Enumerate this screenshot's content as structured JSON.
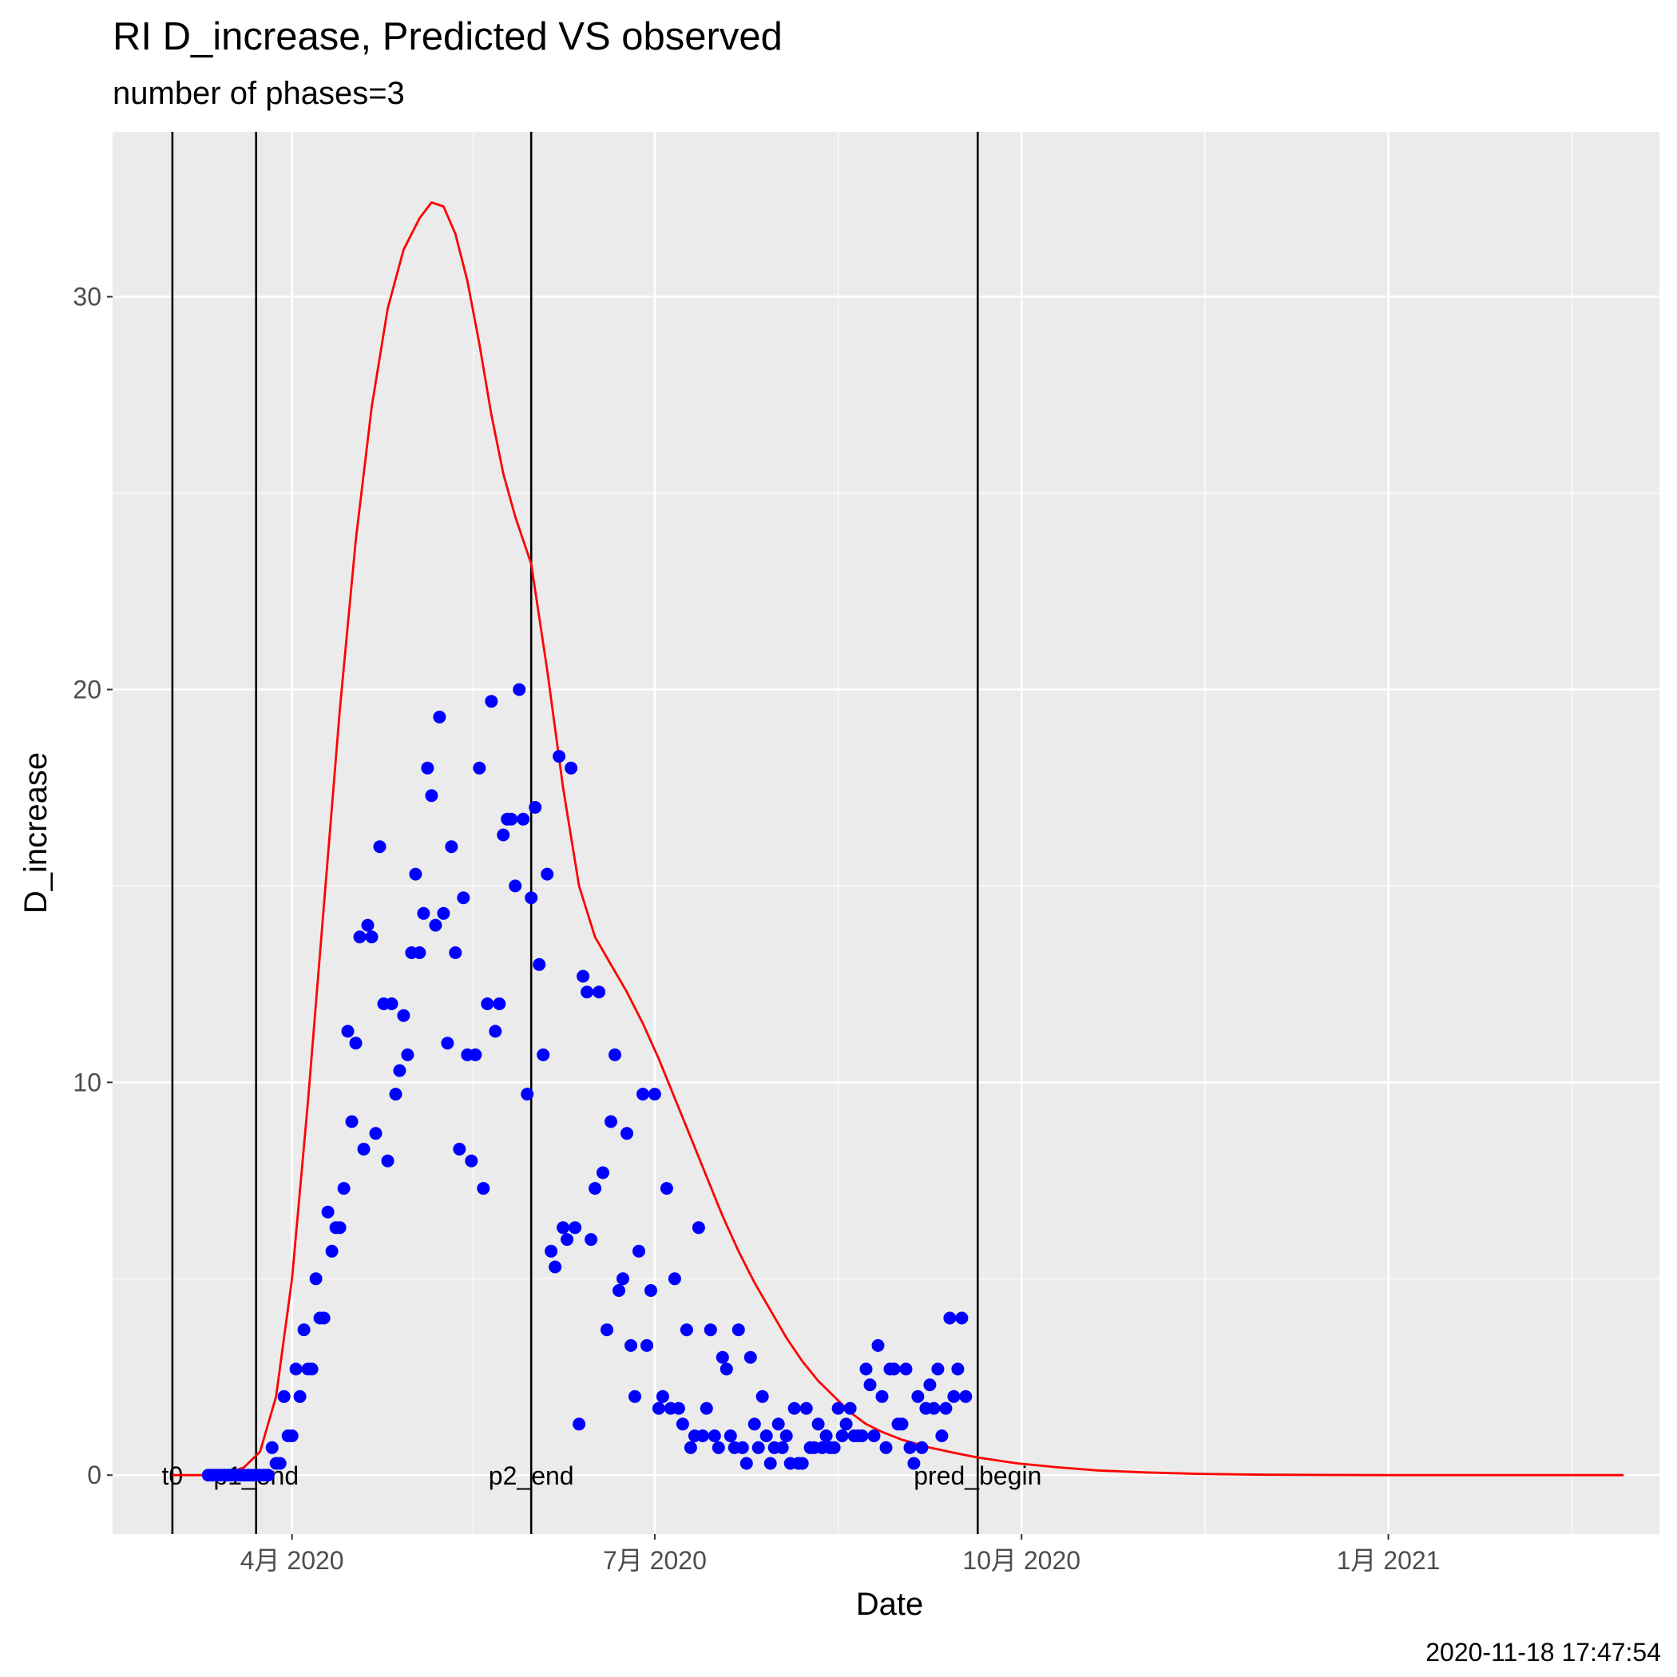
{
  "chart_data": {
    "type": "scatter",
    "title": "RI D_increase, Predicted VS observed",
    "subtitle": "number of phases=3",
    "xlabel": "Date",
    "ylabel": "D_increase",
    "caption": "2020-11-18 17:47:54",
    "x_ticks": [
      {
        "date": "2020-04-01",
        "label": "4月 2020"
      },
      {
        "date": "2020-07-01",
        "label": "7月 2020"
      },
      {
        "date": "2020-10-01",
        "label": "10月 2020"
      },
      {
        "date": "2021-01-01",
        "label": "1月 2021"
      }
    ],
    "xlim": [
      "2020-02-16",
      "2021-03-10"
    ],
    "y_ticks": [
      0,
      10,
      20,
      30
    ],
    "ylim": [
      -1.5,
      34.2
    ],
    "grid": true,
    "vertical_lines": [
      {
        "date": "2020-03-02",
        "label": "t0"
      },
      {
        "date": "2020-03-23",
        "label": "p1_end"
      },
      {
        "date": "2020-05-31",
        "label": "p2_end"
      },
      {
        "date": "2020-09-20",
        "label": "pred_begin"
      }
    ],
    "series": [
      {
        "kind": "points",
        "color": "#0000ff",
        "points": [
          [
            "2020-03-11",
            0
          ],
          [
            "2020-03-12",
            0
          ],
          [
            "2020-03-13",
            0
          ],
          [
            "2020-03-14",
            0
          ],
          [
            "2020-03-15",
            0
          ],
          [
            "2020-03-16",
            0
          ],
          [
            "2020-03-17",
            0
          ],
          [
            "2020-03-18",
            0
          ],
          [
            "2020-03-19",
            0
          ],
          [
            "2020-03-20",
            0
          ],
          [
            "2020-03-21",
            0
          ],
          [
            "2020-03-22",
            0
          ],
          [
            "2020-03-23",
            0
          ],
          [
            "2020-03-24",
            0
          ],
          [
            "2020-03-25",
            0
          ],
          [
            "2020-03-26",
            0
          ],
          [
            "2020-03-27",
            0.7
          ],
          [
            "2020-03-28",
            0.3
          ],
          [
            "2020-03-29",
            0.3
          ],
          [
            "2020-03-30",
            2.0
          ],
          [
            "2020-03-31",
            1.0
          ],
          [
            "2020-04-01",
            1.0
          ],
          [
            "2020-04-02",
            2.7
          ],
          [
            "2020-04-03",
            2.0
          ],
          [
            "2020-04-04",
            3.7
          ],
          [
            "2020-04-05",
            2.7
          ],
          [
            "2020-04-06",
            2.7
          ],
          [
            "2020-04-07",
            5.0
          ],
          [
            "2020-04-08",
            4.0
          ],
          [
            "2020-04-09",
            4.0
          ],
          [
            "2020-04-10",
            6.7
          ],
          [
            "2020-04-11",
            5.7
          ],
          [
            "2020-04-12",
            6.3
          ],
          [
            "2020-04-13",
            6.3
          ],
          [
            "2020-04-14",
            7.3
          ],
          [
            "2020-04-15",
            11.3
          ],
          [
            "2020-04-16",
            9.0
          ],
          [
            "2020-04-17",
            11.0
          ],
          [
            "2020-04-18",
            13.7
          ],
          [
            "2020-04-19",
            8.3
          ],
          [
            "2020-04-20",
            14.0
          ],
          [
            "2020-04-21",
            13.7
          ],
          [
            "2020-04-22",
            8.7
          ],
          [
            "2020-04-23",
            16.0
          ],
          [
            "2020-04-24",
            12.0
          ],
          [
            "2020-04-25",
            8.0
          ],
          [
            "2020-04-26",
            12.0
          ],
          [
            "2020-04-27",
            9.7
          ],
          [
            "2020-04-28",
            10.3
          ],
          [
            "2020-04-29",
            11.7
          ],
          [
            "2020-04-30",
            10.7
          ],
          [
            "2020-05-01",
            13.3
          ],
          [
            "2020-05-02",
            15.3
          ],
          [
            "2020-05-03",
            13.3
          ],
          [
            "2020-05-04",
            14.3
          ],
          [
            "2020-05-05",
            18.0
          ],
          [
            "2020-05-06",
            17.3
          ],
          [
            "2020-05-07",
            14.0
          ],
          [
            "2020-05-08",
            19.3
          ],
          [
            "2020-05-09",
            14.3
          ],
          [
            "2020-05-10",
            11.0
          ],
          [
            "2020-05-11",
            16.0
          ],
          [
            "2020-05-12",
            13.3
          ],
          [
            "2020-05-13",
            8.3
          ],
          [
            "2020-05-14",
            14.7
          ],
          [
            "2020-05-15",
            10.7
          ],
          [
            "2020-05-16",
            8.0
          ],
          [
            "2020-05-17",
            10.7
          ],
          [
            "2020-05-18",
            18.0
          ],
          [
            "2020-05-19",
            7.3
          ],
          [
            "2020-05-20",
            12.0
          ],
          [
            "2020-05-21",
            19.7
          ],
          [
            "2020-05-22",
            11.3
          ],
          [
            "2020-05-23",
            12.0
          ],
          [
            "2020-05-24",
            16.3
          ],
          [
            "2020-05-25",
            16.7
          ],
          [
            "2020-05-26",
            16.7
          ],
          [
            "2020-05-27",
            15.0
          ],
          [
            "2020-05-28",
            20.0
          ],
          [
            "2020-05-29",
            16.7
          ],
          [
            "2020-05-30",
            9.7
          ],
          [
            "2020-05-31",
            14.7
          ],
          [
            "2020-06-01",
            17.0
          ],
          [
            "2020-06-02",
            13.0
          ],
          [
            "2020-06-03",
            10.7
          ],
          [
            "2020-06-04",
            15.3
          ],
          [
            "2020-06-05",
            5.7
          ],
          [
            "2020-06-06",
            5.3
          ],
          [
            "2020-06-07",
            18.3
          ],
          [
            "2020-06-08",
            6.3
          ],
          [
            "2020-06-09",
            6.0
          ],
          [
            "2020-06-10",
            18.0
          ],
          [
            "2020-06-11",
            6.3
          ],
          [
            "2020-06-12",
            1.3
          ],
          [
            "2020-06-13",
            12.7
          ],
          [
            "2020-06-14",
            12.3
          ],
          [
            "2020-06-15",
            6.0
          ],
          [
            "2020-06-16",
            7.3
          ],
          [
            "2020-06-17",
            12.3
          ],
          [
            "2020-06-18",
            7.7
          ],
          [
            "2020-06-19",
            3.7
          ],
          [
            "2020-06-20",
            9.0
          ],
          [
            "2020-06-21",
            10.7
          ],
          [
            "2020-06-22",
            4.7
          ],
          [
            "2020-06-23",
            5.0
          ],
          [
            "2020-06-24",
            8.7
          ],
          [
            "2020-06-25",
            3.3
          ],
          [
            "2020-06-26",
            2.0
          ],
          [
            "2020-06-27",
            5.7
          ],
          [
            "2020-06-28",
            9.7
          ],
          [
            "2020-06-29",
            3.3
          ],
          [
            "2020-06-30",
            4.7
          ],
          [
            "2020-07-01",
            9.7
          ],
          [
            "2020-07-02",
            1.7
          ],
          [
            "2020-07-03",
            2.0
          ],
          [
            "2020-07-04",
            7.3
          ],
          [
            "2020-07-05",
            1.7
          ],
          [
            "2020-07-06",
            5.0
          ],
          [
            "2020-07-07",
            1.7
          ],
          [
            "2020-07-08",
            1.3
          ],
          [
            "2020-07-09",
            3.7
          ],
          [
            "2020-07-10",
            0.7
          ],
          [
            "2020-07-11",
            1.0
          ],
          [
            "2020-07-12",
            6.3
          ],
          [
            "2020-07-13",
            1.0
          ],
          [
            "2020-07-14",
            1.7
          ],
          [
            "2020-07-15",
            3.7
          ],
          [
            "2020-07-16",
            1.0
          ],
          [
            "2020-07-17",
            0.7
          ],
          [
            "2020-07-18",
            3.0
          ],
          [
            "2020-07-19",
            2.7
          ],
          [
            "2020-07-20",
            1.0
          ],
          [
            "2020-07-21",
            0.7
          ],
          [
            "2020-07-22",
            3.7
          ],
          [
            "2020-07-23",
            0.7
          ],
          [
            "2020-07-24",
            0.3
          ],
          [
            "2020-07-25",
            3.0
          ],
          [
            "2020-07-26",
            1.3
          ],
          [
            "2020-07-27",
            0.7
          ],
          [
            "2020-07-28",
            2.0
          ],
          [
            "2020-07-29",
            1.0
          ],
          [
            "2020-07-30",
            0.3
          ],
          [
            "2020-07-31",
            0.7
          ],
          [
            "2020-08-01",
            1.3
          ],
          [
            "2020-08-02",
            0.7
          ],
          [
            "2020-08-03",
            1.0
          ],
          [
            "2020-08-04",
            0.3
          ],
          [
            "2020-08-05",
            1.7
          ],
          [
            "2020-08-06",
            0.3
          ],
          [
            "2020-08-07",
            0.3
          ],
          [
            "2020-08-08",
            1.7
          ],
          [
            "2020-08-09",
            0.7
          ],
          [
            "2020-08-10",
            0.7
          ],
          [
            "2020-08-11",
            1.3
          ],
          [
            "2020-08-12",
            0.7
          ],
          [
            "2020-08-13",
            1.0
          ],
          [
            "2020-08-14",
            0.7
          ],
          [
            "2020-08-15",
            0.7
          ],
          [
            "2020-08-16",
            1.7
          ],
          [
            "2020-08-17",
            1.0
          ],
          [
            "2020-08-18",
            1.3
          ],
          [
            "2020-08-19",
            1.7
          ],
          [
            "2020-08-20",
            1.0
          ],
          [
            "2020-08-21",
            1.0
          ],
          [
            "2020-08-22",
            1.0
          ],
          [
            "2020-08-23",
            2.7
          ],
          [
            "2020-08-24",
            2.3
          ],
          [
            "2020-08-25",
            1.0
          ],
          [
            "2020-08-26",
            3.3
          ],
          [
            "2020-08-27",
            2.0
          ],
          [
            "2020-08-28",
            0.7
          ],
          [
            "2020-08-29",
            2.7
          ],
          [
            "2020-08-30",
            2.7
          ],
          [
            "2020-08-31",
            1.3
          ],
          [
            "2020-09-01",
            1.3
          ],
          [
            "2020-09-02",
            2.7
          ],
          [
            "2020-09-03",
            0.7
          ],
          [
            "2020-09-04",
            0.3
          ],
          [
            "2020-09-05",
            2.0
          ],
          [
            "2020-09-06",
            0.7
          ],
          [
            "2020-09-07",
            1.7
          ],
          [
            "2020-09-08",
            2.3
          ],
          [
            "2020-09-09",
            1.7
          ],
          [
            "2020-09-10",
            2.7
          ],
          [
            "2020-09-11",
            1.0
          ],
          [
            "2020-09-12",
            1.7
          ],
          [
            "2020-09-13",
            4.0
          ],
          [
            "2020-09-14",
            2.0
          ],
          [
            "2020-09-15",
            2.7
          ],
          [
            "2020-09-16",
            4.0
          ],
          [
            "2020-09-17",
            2.0
          ]
        ]
      },
      {
        "kind": "line",
        "color": "#ff0000",
        "points": [
          [
            "2020-03-02",
            0
          ],
          [
            "2020-03-10",
            0.0
          ],
          [
            "2020-03-16",
            0.05
          ],
          [
            "2020-03-20",
            0.2
          ],
          [
            "2020-03-24",
            0.6
          ],
          [
            "2020-03-28",
            2.0
          ],
          [
            "2020-04-01",
            5.0
          ],
          [
            "2020-04-05",
            9.5
          ],
          [
            "2020-04-09",
            14.5
          ],
          [
            "2020-04-13",
            19.5
          ],
          [
            "2020-04-17",
            23.8
          ],
          [
            "2020-04-21",
            27.2
          ],
          [
            "2020-04-25",
            29.7
          ],
          [
            "2020-04-29",
            31.2
          ],
          [
            "2020-05-03",
            32.0
          ],
          [
            "2020-05-06",
            32.4
          ],
          [
            "2020-05-09",
            32.3
          ],
          [
            "2020-05-12",
            31.6
          ],
          [
            "2020-05-15",
            30.4
          ],
          [
            "2020-05-18",
            28.8
          ],
          [
            "2020-05-21",
            27.0
          ],
          [
            "2020-05-24",
            25.5
          ],
          [
            "2020-05-27",
            24.4
          ],
          [
            "2020-05-31",
            23.2
          ],
          [
            "2020-06-04",
            20.5
          ],
          [
            "2020-06-08",
            17.5
          ],
          [
            "2020-06-12",
            15.0
          ],
          [
            "2020-06-16",
            13.7
          ],
          [
            "2020-06-20",
            13.0
          ],
          [
            "2020-06-24",
            12.3
          ],
          [
            "2020-06-28",
            11.5
          ],
          [
            "2020-07-02",
            10.6
          ],
          [
            "2020-07-06",
            9.6
          ],
          [
            "2020-07-10",
            8.6
          ],
          [
            "2020-07-14",
            7.6
          ],
          [
            "2020-07-18",
            6.6
          ],
          [
            "2020-07-22",
            5.7
          ],
          [
            "2020-07-26",
            4.9
          ],
          [
            "2020-07-30",
            4.2
          ],
          [
            "2020-08-03",
            3.5
          ],
          [
            "2020-08-07",
            2.9
          ],
          [
            "2020-08-11",
            2.4
          ],
          [
            "2020-08-15",
            2.0
          ],
          [
            "2020-08-19",
            1.6
          ],
          [
            "2020-08-23",
            1.3
          ],
          [
            "2020-08-27",
            1.1
          ],
          [
            "2020-09-01",
            0.9
          ],
          [
            "2020-09-08",
            0.7
          ],
          [
            "2020-09-15",
            0.55
          ],
          [
            "2020-09-20",
            0.45
          ],
          [
            "2020-09-30",
            0.3
          ],
          [
            "2020-10-10",
            0.2
          ],
          [
            "2020-10-20",
            0.12
          ],
          [
            "2020-11-01",
            0.07
          ],
          [
            "2020-11-15",
            0.03
          ],
          [
            "2020-12-01",
            0.01
          ],
          [
            "2021-01-01",
            0.0
          ],
          [
            "2021-02-01",
            0.0
          ],
          [
            "2021-03-01",
            0.0
          ]
        ]
      }
    ]
  }
}
